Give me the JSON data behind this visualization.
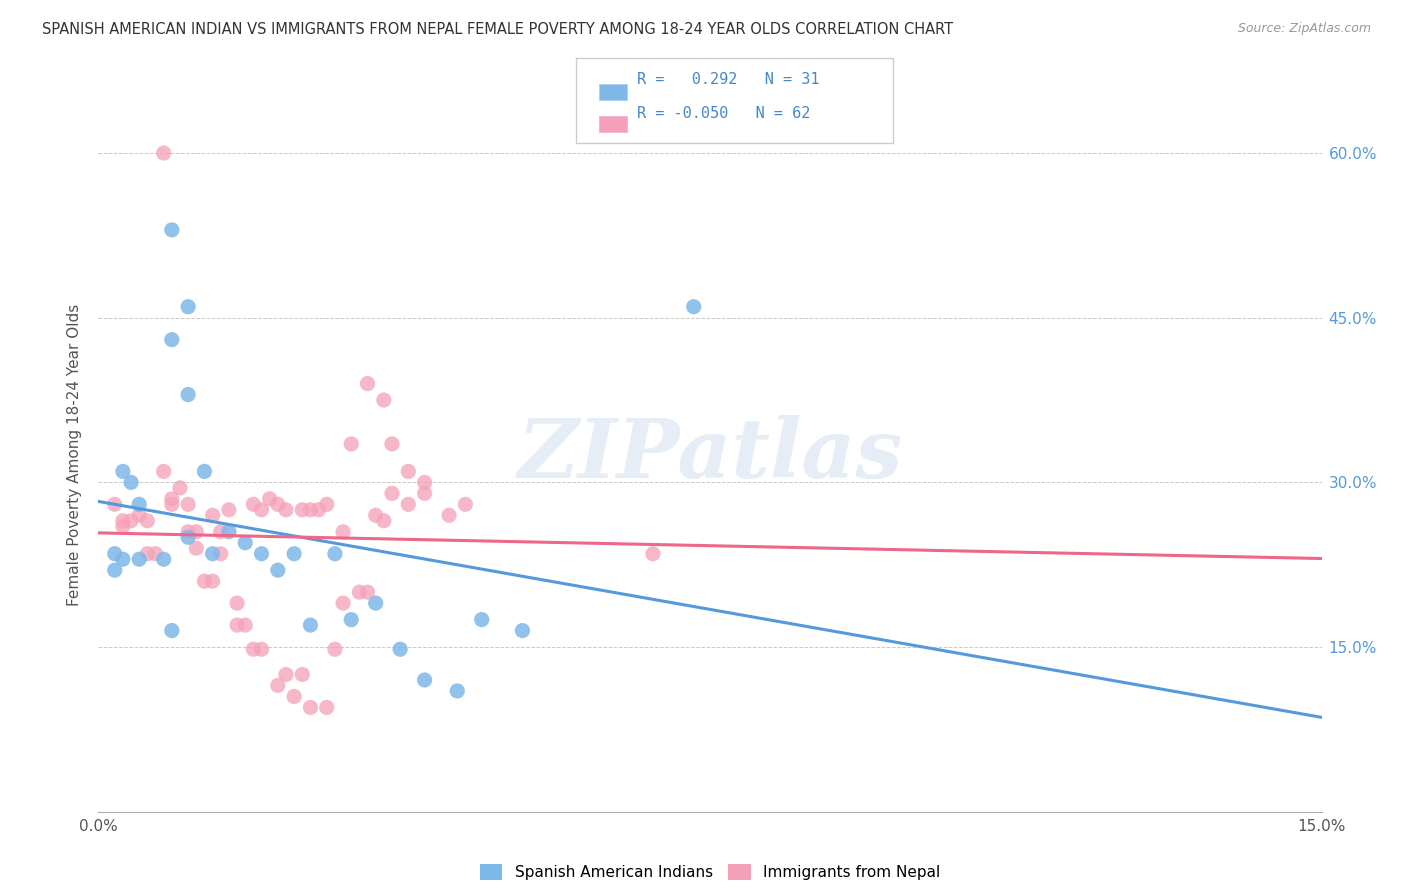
{
  "title": "SPANISH AMERICAN INDIAN VS IMMIGRANTS FROM NEPAL FEMALE POVERTY AMONG 18-24 YEAR OLDS CORRELATION CHART",
  "source": "Source: ZipAtlas.com",
  "ylabel": "Female Poverty Among 18-24 Year Olds",
  "xlim": [
    0.0,
    0.15
  ],
  "ylim": [
    0.0,
    0.65
  ],
  "x_tick_pos": [
    0.0,
    0.03,
    0.06,
    0.09,
    0.12,
    0.15
  ],
  "x_tick_labels": [
    "0.0%",
    "",
    "",
    "",
    "",
    "15.0%"
  ],
  "y_ticks_right": [
    0.15,
    0.3,
    0.45,
    0.6
  ],
  "y_tick_labels_right": [
    "15.0%",
    "30.0%",
    "45.0%",
    "60.0%"
  ],
  "blue_color": "#7eb8e8",
  "pink_color": "#f4a0b8",
  "blue_line_color": "#5599dd",
  "pink_line_color": "#ee6688",
  "watermark_text": "ZIPatlas",
  "legend_r1_label": "R =   0.292   N = 31",
  "legend_r2_label": "R = -0.050   N = 62",
  "blue_scatter_x": [
    0.004,
    0.009,
    0.011,
    0.009,
    0.011,
    0.013,
    0.003,
    0.005,
    0.005,
    0.002,
    0.003,
    0.008,
    0.011,
    0.009,
    0.014,
    0.016,
    0.018,
    0.02,
    0.022,
    0.024,
    0.026,
    0.029,
    0.031,
    0.034,
    0.037,
    0.04,
    0.044,
    0.047,
    0.073,
    0.002,
    0.052
  ],
  "blue_scatter_y": [
    0.3,
    0.53,
    0.46,
    0.43,
    0.38,
    0.31,
    0.31,
    0.23,
    0.28,
    0.22,
    0.23,
    0.23,
    0.25,
    0.165,
    0.235,
    0.255,
    0.245,
    0.235,
    0.22,
    0.235,
    0.17,
    0.235,
    0.175,
    0.19,
    0.148,
    0.12,
    0.11,
    0.175,
    0.46,
    0.235,
    0.165
  ],
  "pink_scatter_x": [
    0.008,
    0.002,
    0.003,
    0.005,
    0.006,
    0.009,
    0.01,
    0.011,
    0.012,
    0.014,
    0.015,
    0.016,
    0.017,
    0.019,
    0.02,
    0.021,
    0.022,
    0.023,
    0.025,
    0.026,
    0.027,
    0.028,
    0.03,
    0.031,
    0.033,
    0.034,
    0.035,
    0.036,
    0.038,
    0.04,
    0.043,
    0.045,
    0.003,
    0.004,
    0.006,
    0.007,
    0.008,
    0.009,
    0.011,
    0.012,
    0.013,
    0.014,
    0.015,
    0.017,
    0.018,
    0.019,
    0.02,
    0.022,
    0.023,
    0.024,
    0.025,
    0.026,
    0.028,
    0.029,
    0.03,
    0.032,
    0.033,
    0.068,
    0.035,
    0.036,
    0.038,
    0.04
  ],
  "pink_scatter_y": [
    0.6,
    0.28,
    0.26,
    0.27,
    0.265,
    0.285,
    0.295,
    0.28,
    0.255,
    0.27,
    0.235,
    0.275,
    0.19,
    0.28,
    0.275,
    0.285,
    0.28,
    0.275,
    0.275,
    0.275,
    0.275,
    0.28,
    0.255,
    0.335,
    0.39,
    0.27,
    0.265,
    0.29,
    0.28,
    0.29,
    0.27,
    0.28,
    0.265,
    0.265,
    0.235,
    0.235,
    0.31,
    0.28,
    0.255,
    0.24,
    0.21,
    0.21,
    0.255,
    0.17,
    0.17,
    0.148,
    0.148,
    0.115,
    0.125,
    0.105,
    0.125,
    0.095,
    0.095,
    0.148,
    0.19,
    0.2,
    0.2,
    0.235,
    0.375,
    0.335,
    0.31,
    0.3
  ]
}
